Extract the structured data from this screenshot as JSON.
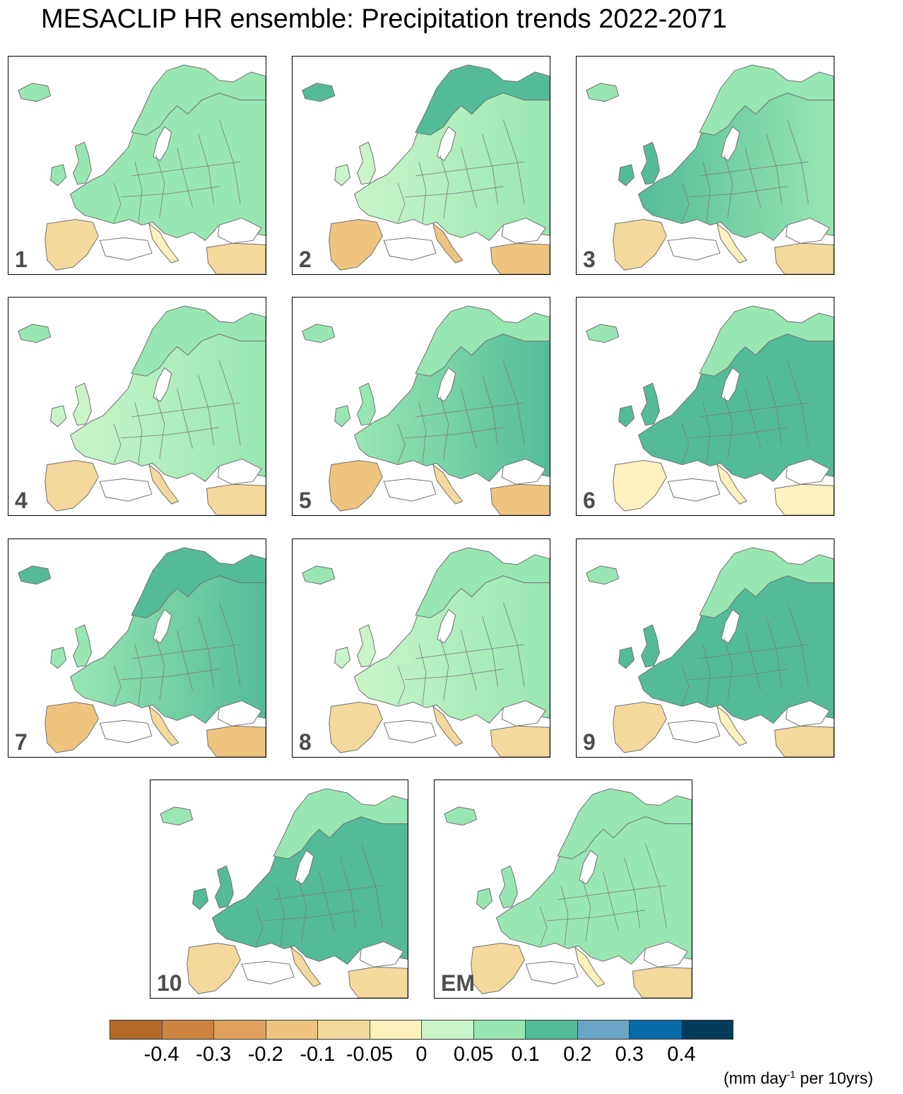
{
  "title": "MESACLIP HR ensemble: Precipitation trends 2022-2071",
  "chart_data": {
    "type": "heatmap",
    "title": "MESACLIP HR ensemble: Precipitation trends 2022-2071",
    "variable": "precipitation trend",
    "units": {
      "prefix": "(mm day",
      "exponent": "-1",
      "suffix": " per 10yrs)"
    },
    "colorbar": {
      "levels": [
        "-0.4",
        "-0.3",
        "-0.2",
        "-0.1",
        "-0.05",
        "0",
        "0.05",
        "0.1",
        "0.2",
        "0.3",
        "0.4"
      ],
      "colors": [
        "#b56a2b",
        "#cc8440",
        "#dea25e",
        "#efc47f",
        "#f3d99b",
        "#fdf1bd",
        "#c9f5c8",
        "#98e7b2",
        "#54bb99",
        "#6ba5c5",
        "#0a6aa8",
        "#053b5a"
      ]
    },
    "panels": [
      {
        "label": "1",
        "west": 0.07,
        "east": 0.08,
        "north": 0.06,
        "south": -0.08
      },
      {
        "label": "2",
        "west": 0.0,
        "east": 0.05,
        "north": 0.1,
        "south": -0.15
      },
      {
        "label": "3",
        "west": 0.12,
        "east": 0.09,
        "north": 0.06,
        "south": -0.06
      },
      {
        "label": "4",
        "west": 0.03,
        "east": 0.06,
        "north": 0.06,
        "south": -0.09
      },
      {
        "label": "5",
        "west": 0.06,
        "east": 0.12,
        "north": 0.07,
        "south": -0.11
      },
      {
        "label": "6",
        "west": 0.13,
        "east": 0.13,
        "north": 0.05,
        "south": -0.05
      },
      {
        "label": "7",
        "west": 0.08,
        "east": 0.1,
        "north": 0.1,
        "south": -0.13
      },
      {
        "label": "8",
        "west": 0.04,
        "east": 0.07,
        "north": 0.06,
        "south": -0.1
      },
      {
        "label": "9",
        "west": 0.12,
        "east": 0.1,
        "north": 0.06,
        "south": -0.06
      },
      {
        "label": "10",
        "west": 0.11,
        "east": 0.12,
        "north": 0.07,
        "south": -0.09
      },
      {
        "label": "EM",
        "west": 0.06,
        "east": 0.07,
        "north": 0.06,
        "south": -0.07
      }
    ]
  }
}
